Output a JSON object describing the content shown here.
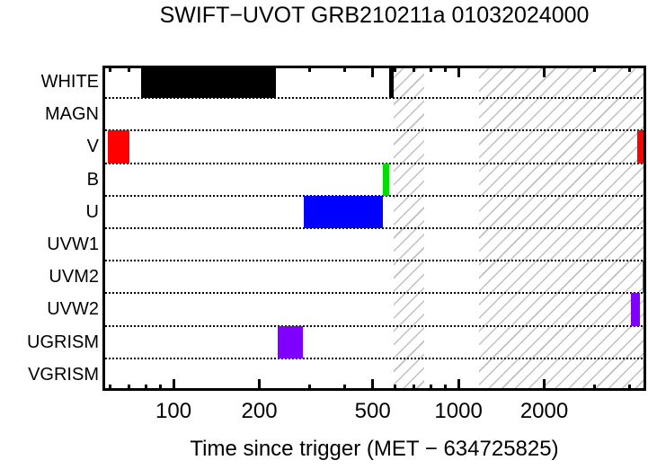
{
  "chart_data": {
    "type": "timeline",
    "title": "SWIFT−UVOT GRB210211a 01032024000",
    "xlabel": "Time since trigger (MET − 634725825)",
    "x_scale": "log",
    "x_range": [
      56.3,
      4560
    ],
    "x_ticks_labeled": [
      {
        "value": 100,
        "label": "100"
      },
      {
        "value": 200,
        "label": "200"
      },
      {
        "value": 500,
        "label": "500"
      },
      {
        "value": 1000,
        "label": "1000"
      },
      {
        "value": 2000,
        "label": "2000"
      }
    ],
    "x_ticks_minor": [
      60,
      70,
      80,
      90,
      300,
      400,
      600,
      700,
      800,
      900,
      3000,
      4000
    ],
    "rows": [
      {
        "filter": "WHITE",
        "segments": [
          {
            "start": 77,
            "end": 229,
            "color": "#000000"
          },
          {
            "start": 572,
            "end": 593,
            "color": "#000000"
          }
        ]
      },
      {
        "filter": "MAGN",
        "segments": []
      },
      {
        "filter": "V",
        "segments": [
          {
            "start": 59,
            "end": 70,
            "color": "#ff0000"
          },
          {
            "start": 4246,
            "end": 4560,
            "color": "#ff0000"
          }
        ]
      },
      {
        "filter": "B",
        "segments": [
          {
            "start": 544,
            "end": 572,
            "color": "#00dd00"
          }
        ]
      },
      {
        "filter": "U",
        "segments": [
          {
            "start": 287,
            "end": 544,
            "color": "#0000ff"
          }
        ]
      },
      {
        "filter": "UVW1",
        "segments": []
      },
      {
        "filter": "UVM2",
        "segments": [
          {
            "start": 4430,
            "end": 4560,
            "color": "#ff00ff"
          }
        ]
      },
      {
        "filter": "UVW2",
        "segments": [
          {
            "start": 4023,
            "end": 4345,
            "color": "#7f00ff"
          }
        ]
      },
      {
        "filter": "UGRISM",
        "segments": [
          {
            "start": 232,
            "end": 285,
            "color": "#7f00ff"
          }
        ]
      },
      {
        "filter": "VGRISM",
        "segments": []
      }
    ],
    "hatched_windows": [
      {
        "start": 593,
        "end": 757
      },
      {
        "start": 1180,
        "end": 4560
      }
    ],
    "hatch_color": "#c0c0c0",
    "grid": "dotted row separators",
    "legend": "none"
  }
}
